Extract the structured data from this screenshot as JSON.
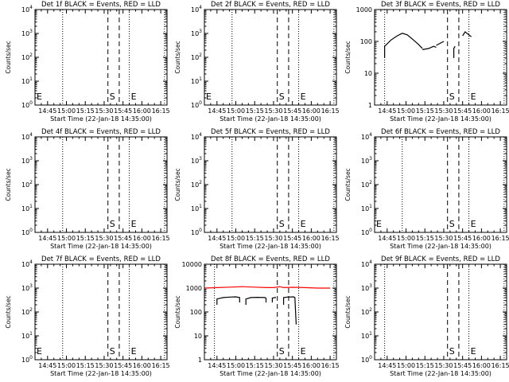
{
  "colors": {
    "background": "#ffffff",
    "axes": "#000000",
    "events": "#000000",
    "lld": "#ff0000"
  },
  "chart_data": [
    {
      "type": "line",
      "title": "Det 1f BLACK = Events, RED = LLD",
      "xlabel": "Start Time (22-Jan-18 14:35:00)",
      "ylabel": "Counts/sec",
      "yscale": "log",
      "xlim": [
        "14:35",
        "16:20"
      ],
      "ylim": [
        1,
        10000
      ],
      "xticks": [
        "14:45",
        "15:00",
        "15:15",
        "15:30",
        "15:45",
        "16:00",
        "16:15"
      ],
      "yticks": [
        "10^0",
        "10^1",
        "10^2",
        "10^3",
        "10^4"
      ],
      "markers": [
        {
          "label": "E",
          "time": "14:35",
          "style": "dotted"
        },
        {
          "label": "",
          "time": "14:57",
          "style": "dotted"
        },
        {
          "label": "S",
          "time": "15:33",
          "style": "dashed"
        },
        {
          "label": "",
          "time": "15:42",
          "style": "dashed"
        },
        {
          "label": "E",
          "time": "15:50",
          "style": "dotted"
        },
        {
          "label": "",
          "time": "16:18",
          "style": "dotted"
        }
      ],
      "series": []
    },
    {
      "type": "line",
      "title": "Det 2f BLACK = Events, RED = LLD",
      "xlabel": "Start Time (22-Jan-18 14:35:00)",
      "ylabel": "Counts/sec",
      "yscale": "log",
      "xlim": [
        "14:35",
        "16:20"
      ],
      "ylim": [
        1,
        10000
      ],
      "xticks": [
        "14:45",
        "15:00",
        "15:15",
        "15:30",
        "15:45",
        "16:00",
        "16:15"
      ],
      "yticks": [
        "10^0",
        "10^1",
        "10^2",
        "10^3",
        "10^4"
      ],
      "markers": [
        {
          "label": "E",
          "time": "14:35",
          "style": "dotted"
        },
        {
          "label": "",
          "time": "14:57",
          "style": "dotted"
        },
        {
          "label": "S",
          "time": "15:33",
          "style": "dashed"
        },
        {
          "label": "",
          "time": "15:42",
          "style": "dashed"
        },
        {
          "label": "E",
          "time": "15:50",
          "style": "dotted"
        },
        {
          "label": "",
          "time": "16:18",
          "style": "dotted"
        }
      ],
      "series": []
    },
    {
      "type": "line",
      "title": "Det 3f BLACK = Events, RED = LLD",
      "xlabel": "Start Time (22-Jan-18 14:35:00)",
      "ylabel": "Counts/sec",
      "yscale": "log",
      "xlim": [
        "14:35",
        "16:20"
      ],
      "ylim": [
        1,
        1000
      ],
      "xticks": [
        "14:45",
        "15:00",
        "15:15",
        "15:30",
        "15:45",
        "16:00",
        "16:15"
      ],
      "yticks": [
        "1",
        "10",
        "100",
        "1000"
      ],
      "markers": [
        {
          "label": "",
          "time": "14:43",
          "style": "dotted"
        },
        {
          "label": "S",
          "time": "15:33",
          "style": "dashed"
        },
        {
          "label": "",
          "time": "15:42",
          "style": "dashed"
        },
        {
          "label": "E",
          "time": "15:50",
          "style": "dotted"
        },
        {
          "label": "",
          "time": "16:18",
          "style": "dotted"
        }
      ],
      "series": [
        {
          "name": "",
          "color": "#000000",
          "segments": [
            [
              [
                "14:43",
                30
              ],
              [
                "14:43",
                70
              ],
              [
                "14:48",
                110
              ],
              [
                "14:53",
                150
              ],
              [
                "14:57",
                180
              ],
              [
                "15:01",
                160
              ],
              [
                "15:06",
                110
              ],
              [
                "15:10",
                80
              ],
              [
                "15:13",
                60
              ]
            ],
            [
              [
                "15:13",
                55
              ],
              [
                "15:18",
                60
              ],
              [
                "15:22",
                70
              ],
              [
                "15:24",
                65
              ]
            ],
            [
              [
                "15:24",
                75
              ],
              [
                "15:30",
                100
              ]
            ],
            [
              [
                "15:38",
                30
              ],
              [
                "15:38",
                60
              ],
              [
                "15:39",
                70
              ]
            ],
            [
              [
                "15:45",
                150
              ],
              [
                "15:47",
                200
              ],
              [
                "15:50",
                160
              ],
              [
                "15:52",
                140
              ]
            ]
          ]
        }
      ]
    },
    {
      "type": "line",
      "title": "Det 4f BLACK = Events, RED = LLD",
      "xlabel": "Start Time (22-Jan-18 14:35:00)",
      "ylabel": "Counts/sec",
      "yscale": "log",
      "xlim": [
        "14:35",
        "16:20"
      ],
      "ylim": [
        1,
        10000
      ],
      "xticks": [
        "14:45",
        "15:00",
        "15:15",
        "15:30",
        "15:45",
        "16:00",
        "16:15"
      ],
      "yticks": [
        "10^0",
        "10^1",
        "10^2",
        "10^3",
        "10^4"
      ],
      "markers": [
        {
          "label": "",
          "time": "14:35",
          "style": "dotted"
        },
        {
          "label": "",
          "time": "14:57",
          "style": "dotted"
        },
        {
          "label": "S",
          "time": "15:33",
          "style": "dashed"
        },
        {
          "label": "",
          "time": "15:42",
          "style": "dashed"
        },
        {
          "label": "E",
          "time": "15:50",
          "style": "dotted"
        },
        {
          "label": "",
          "time": "16:18",
          "style": "dotted"
        }
      ],
      "series": []
    },
    {
      "type": "line",
      "title": "Det 5f BLACK = Events, RED = LLD",
      "xlabel": "Start Time (22-Jan-18 14:35:00)",
      "ylabel": "Counts/sec",
      "yscale": "log",
      "xlim": [
        "14:35",
        "16:20"
      ],
      "ylim": [
        1,
        10000
      ],
      "xticks": [
        "14:45",
        "15:00",
        "15:15",
        "15:30",
        "15:45",
        "16:00",
        "16:15"
      ],
      "yticks": [
        "10^0",
        "10^1",
        "10^2",
        "10^3",
        "10^4"
      ],
      "markers": [
        {
          "label": "",
          "time": "14:35",
          "style": "dotted"
        },
        {
          "label": "",
          "time": "14:57",
          "style": "dotted"
        },
        {
          "label": "S",
          "time": "15:33",
          "style": "dashed"
        },
        {
          "label": "",
          "time": "15:42",
          "style": "dashed"
        },
        {
          "label": "E",
          "time": "15:50",
          "style": "dotted"
        },
        {
          "label": "",
          "time": "16:18",
          "style": "dotted"
        }
      ],
      "series": []
    },
    {
      "type": "line",
      "title": "Det 6f BLACK = Events, RED = LLD",
      "xlabel": "Start Time (22-Jan-18 14:35:00)",
      "ylabel": "Counts/sec",
      "yscale": "log",
      "xlim": [
        "14:35",
        "16:20"
      ],
      "ylim": [
        1,
        10000
      ],
      "xticks": [
        "14:45",
        "15:00",
        "15:15",
        "15:30",
        "15:45",
        "16:00",
        "16:15"
      ],
      "yticks": [
        "10^0",
        "10^1",
        "10^2",
        "10^3",
        "10^4"
      ],
      "markers": [
        {
          "label": "E",
          "time": "14:35",
          "style": "dotted"
        },
        {
          "label": "",
          "time": "14:57",
          "style": "dotted"
        },
        {
          "label": "S",
          "time": "15:33",
          "style": "dashed"
        },
        {
          "label": "",
          "time": "15:42",
          "style": "dashed"
        },
        {
          "label": "E",
          "time": "15:50",
          "style": "dotted"
        },
        {
          "label": "",
          "time": "16:18",
          "style": "dotted"
        }
      ],
      "series": []
    },
    {
      "type": "line",
      "title": "Det 7f BLACK = Events, RED = LLD",
      "xlabel": "Start Time (22-Jan-18 14:35:00)",
      "ylabel": "Counts/sec",
      "yscale": "log",
      "xlim": [
        "14:35",
        "16:20"
      ],
      "ylim": [
        1,
        10000
      ],
      "xticks": [
        "14:45",
        "15:00",
        "15:15",
        "15:30",
        "15:45",
        "16:00",
        "16:15"
      ],
      "yticks": [
        "10^0",
        "10^1",
        "10^2",
        "10^3",
        "10^4"
      ],
      "markers": [
        {
          "label": "E",
          "time": "14:35",
          "style": "dotted"
        },
        {
          "label": "",
          "time": "14:57",
          "style": "dotted"
        },
        {
          "label": "S",
          "time": "15:33",
          "style": "dashed"
        },
        {
          "label": "",
          "time": "15:42",
          "style": "dashed"
        },
        {
          "label": "E",
          "time": "15:50",
          "style": "dotted"
        },
        {
          "label": "",
          "time": "16:18",
          "style": "dotted"
        }
      ],
      "series": []
    },
    {
      "type": "line",
      "title": "Det 8f BLACK = Events, RED = LLD",
      "xlabel": "Start Time (22-Jan-18 14:35:00)",
      "ylabel": "Counts/sec",
      "yscale": "log",
      "xlim": [
        "14:35",
        "16:20"
      ],
      "ylim": [
        1,
        10000
      ],
      "xticks": [
        "14:45",
        "15:00",
        "15:15",
        "15:30",
        "15:45",
        "16:00",
        "16:15"
      ],
      "yticks": [
        "1",
        "10",
        "100",
        "1000",
        "10000"
      ],
      "markers": [
        {
          "label": "",
          "time": "14:43",
          "style": "dotted"
        },
        {
          "label": "S",
          "time": "15:33",
          "style": "dashed"
        },
        {
          "label": "",
          "time": "15:42",
          "style": "dashed"
        },
        {
          "label": "E",
          "time": "15:50",
          "style": "dotted"
        },
        {
          "label": "",
          "time": "16:18",
          "style": "dotted"
        }
      ],
      "series": [
        {
          "name": "",
          "color": "#ff0000",
          "segments": [
            [
              [
                "14:35",
                1000
              ],
              [
                "14:45",
                1050
              ],
              [
                "14:55",
                1100
              ],
              [
                "15:05",
                1150
              ],
              [
                "15:15",
                1100
              ],
              [
                "15:25",
                1050
              ],
              [
                "15:30",
                1050
              ],
              [
                "15:35",
                1150
              ],
              [
                "15:38",
                1050
              ],
              [
                "15:45",
                1080
              ],
              [
                "15:55",
                1050
              ],
              [
                "16:05",
                1000
              ],
              [
                "16:15",
                1000
              ]
            ]
          ]
        },
        {
          "name": "",
          "color": "#000000",
          "segments": [
            [
              [
                "14:45",
                200
              ],
              [
                "14:45",
                350
              ],
              [
                "14:50",
                400
              ],
              [
                "14:55",
                420
              ],
              [
                "15:00",
                430
              ],
              [
                "15:03",
                400
              ],
              [
                "15:03",
                250
              ]
            ],
            [
              [
                "15:08",
                200
              ],
              [
                "15:08",
                350
              ],
              [
                "15:12",
                400
              ],
              [
                "15:17",
                410
              ],
              [
                "15:23",
                400
              ],
              [
                "15:24",
                380
              ],
              [
                "15:24",
                250
              ]
            ],
            [
              [
                "15:29",
                250
              ],
              [
                "15:29",
                380
              ],
              [
                "15:31",
                400
              ],
              [
                "15:32",
                400
              ]
            ],
            [
              [
                "15:38",
                200
              ],
              [
                "15:38",
                400
              ],
              [
                "15:41",
                420
              ],
              [
                "15:46",
                430
              ],
              [
                "15:47",
                400
              ],
              [
                "15:48",
                30
              ]
            ]
          ]
        }
      ]
    },
    {
      "type": "line",
      "title": "Det 9f BLACK = Events, RED = LLD",
      "xlabel": "Start Time (22-Jan-18 14:35:00)",
      "ylabel": "Counts/sec",
      "yscale": "log",
      "xlim": [
        "14:35",
        "16:20"
      ],
      "ylim": [
        1,
        10000
      ],
      "xticks": [
        "14:45",
        "15:00",
        "15:15",
        "15:30",
        "15:45",
        "16:00",
        "16:15"
      ],
      "yticks": [
        "10^0",
        "10^1",
        "10^2",
        "10^3",
        "10^4"
      ],
      "markers": [
        {
          "label": "",
          "time": "14:43",
          "style": "dotted"
        },
        {
          "label": "S",
          "time": "15:33",
          "style": "dashed"
        },
        {
          "label": "",
          "time": "15:42",
          "style": "dashed"
        },
        {
          "label": "E",
          "time": "15:50",
          "style": "dotted"
        },
        {
          "label": "",
          "time": "16:18",
          "style": "dotted"
        }
      ],
      "series": []
    }
  ]
}
